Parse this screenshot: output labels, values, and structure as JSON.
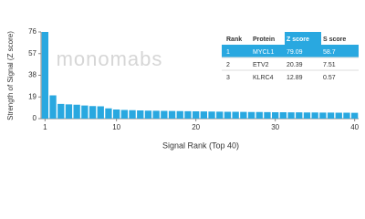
{
  "chart_data": {
    "type": "bar",
    "watermark": "monomabs",
    "y_label": "Strength of Signal (Z score)",
    "x_label": "Signal Rank (Top 40)",
    "x": [
      1,
      2,
      3,
      4,
      5,
      6,
      7,
      8,
      9,
      10,
      11,
      12,
      13,
      14,
      15,
      16,
      17,
      18,
      19,
      20,
      21,
      22,
      23,
      24,
      25,
      26,
      27,
      28,
      29,
      30,
      31,
      32,
      33,
      34,
      35,
      36,
      37,
      38,
      39,
      40
    ],
    "values": [
      79.09,
      20.39,
      12.89,
      12.5,
      12.2,
      11.5,
      11,
      10.8,
      9,
      8,
      7.6,
      7.4,
      7.2,
      7,
      6.9,
      6.8,
      6.7,
      6.6,
      6.5,
      6.4,
      6.3,
      6.2,
      6.1,
      6,
      6,
      5.9,
      5.8,
      5.8,
      5.7,
      5.6,
      5.6,
      5.5,
      5.5,
      5.4,
      5.4,
      5.3,
      5.3,
      5.2,
      5.2,
      5.1
    ],
    "color": "#29a8e0",
    "ylim": [
      0,
      76
    ],
    "yticks": [
      0,
      19,
      38,
      57,
      76
    ],
    "xticks": [
      1,
      10,
      20,
      30,
      40
    ],
    "table": {
      "header": [
        "Rank",
        "Protein",
        "Z score",
        "S score"
      ],
      "rows": [
        [
          "1",
          "MYCL1",
          "79.09",
          "58.7"
        ],
        [
          "2",
          "ETV2",
          "20.39",
          "7.51"
        ],
        [
          "3",
          "KLRC4",
          "12.89",
          "0.57"
        ]
      ]
    }
  }
}
